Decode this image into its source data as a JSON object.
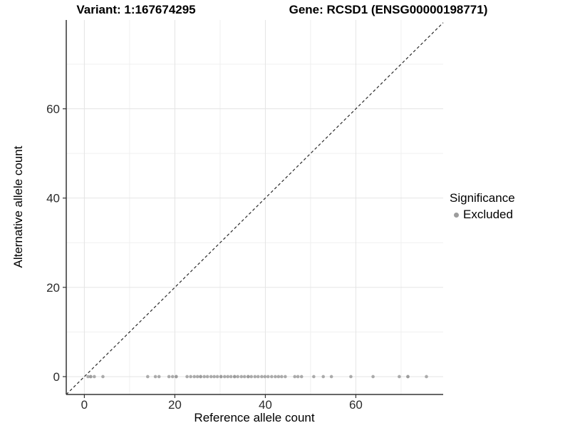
{
  "header": {
    "variant_title": "Variant: 1:167674295",
    "gene_title": "Gene: RCSD1 (ENSG00000198771)"
  },
  "legend": {
    "title": "Significance",
    "items": [
      {
        "label": "Excluded",
        "color": "#9c9c9c"
      }
    ]
  },
  "colors": {
    "background": "#ffffff",
    "grid_major": "#e4e4e4",
    "grid_minor": "#f0f0f0",
    "axis_line": "#333333",
    "tick_label": "#2b2b2b",
    "identity_line": "#2a2a2a",
    "point": "#999999"
  },
  "chart_data": {
    "type": "scatter",
    "title": "",
    "xlabel": "Reference allele count",
    "ylabel": "Alternative allele count",
    "xlim": [
      -4,
      79.3
    ],
    "ylim": [
      -4,
      79.9
    ],
    "x_ticks": [
      0,
      20,
      40,
      60
    ],
    "y_ticks": [
      0,
      20,
      40,
      60
    ],
    "x_minor_gridlines": [
      10,
      30,
      50,
      70
    ],
    "y_minor_gridlines": [
      10,
      30,
      50,
      70
    ],
    "grid": true,
    "legend_position": "right",
    "identity_line": {
      "style": "dashed",
      "slope": 1,
      "intercept": 0,
      "from": -4,
      "to": 79.3
    },
    "series": [
      {
        "name": "Excluded",
        "color": "#999999",
        "point_radius": 2.3,
        "points": [
          [
            0.8,
            0
          ],
          [
            1.4,
            0
          ],
          [
            2.2,
            0
          ],
          [
            4.1,
            0
          ],
          [
            14,
            0
          ],
          [
            15.7,
            0
          ],
          [
            16.5,
            0
          ],
          [
            18.7,
            0
          ],
          [
            19.5,
            0
          ],
          [
            20.3,
            0
          ],
          [
            22.7,
            0
          ],
          [
            23.5,
            0
          ],
          [
            24.3,
            0
          ],
          [
            25,
            0
          ],
          [
            25.7,
            0
          ],
          [
            26.5,
            0
          ],
          [
            27.2,
            0
          ],
          [
            28,
            0
          ],
          [
            28.7,
            0
          ],
          [
            29.4,
            0
          ],
          [
            30.2,
            0
          ],
          [
            31,
            0
          ],
          [
            31.7,
            0
          ],
          [
            32.4,
            0
          ],
          [
            33.2,
            0
          ],
          [
            33.9,
            0
          ],
          [
            34.7,
            0
          ],
          [
            35.4,
            0
          ],
          [
            36.2,
            0
          ],
          [
            36.9,
            0
          ],
          [
            37.7,
            0
          ],
          [
            38.4,
            0
          ],
          [
            39.2,
            0
          ],
          [
            39.9,
            0
          ],
          [
            40.6,
            0
          ],
          [
            41.4,
            0
          ],
          [
            42.2,
            0
          ],
          [
            42.9,
            0
          ],
          [
            43.6,
            0
          ],
          [
            44.4,
            0
          ],
          [
            46.5,
            0
          ],
          [
            47.2,
            0
          ],
          [
            48,
            0
          ],
          [
            50.7,
            0
          ],
          [
            52.8,
            0
          ],
          [
            54.6,
            0
          ],
          [
            58.9,
            0
          ],
          [
            63.8,
            0
          ],
          [
            69.6,
            0
          ],
          [
            71.5,
            0
          ],
          [
            75.6,
            0
          ]
        ],
        "overlap_points": [
          [
            1.4,
            0
          ],
          [
            20.3,
            0
          ],
          [
            25.7,
            0
          ],
          [
            30.2,
            0
          ],
          [
            33.2,
            0
          ],
          [
            36.2,
            0
          ],
          [
            71.5,
            0
          ]
        ]
      }
    ]
  }
}
